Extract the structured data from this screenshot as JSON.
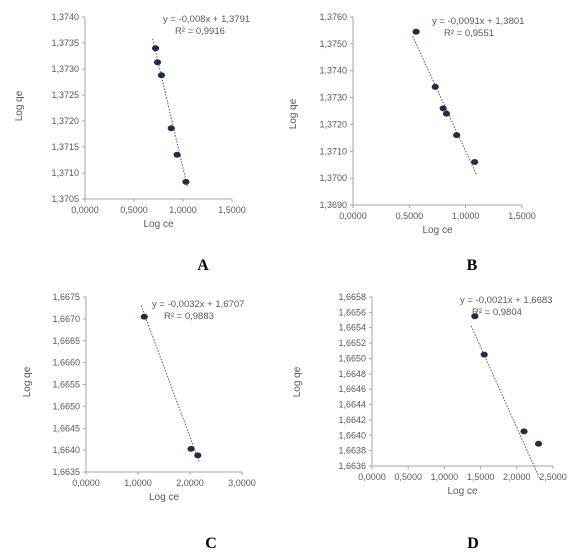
{
  "colors": {
    "axis": "#a6a6a6",
    "point": "#1f2d4d",
    "trend": "#595959",
    "text": "#595959"
  },
  "chart_data": [
    {
      "type": "scatter",
      "panel": "A",
      "xlabel": "Log ce",
      "ylabel": "Log qe",
      "xlim": [
        0,
        1.5
      ],
      "ylim": [
        1.3705,
        1.374
      ],
      "xticks": [
        "0,0000",
        "0,5000",
        "1,0000",
        "1,5000"
      ],
      "yticks": [
        "1,3705",
        "1,3710",
        "1,3715",
        "1,3720",
        "1,3725",
        "1,3730",
        "1,3735",
        "1,3740"
      ],
      "points": [
        {
          "x": 0.72,
          "y": 1.3734
        },
        {
          "x": 0.74,
          "y": 1.37313
        },
        {
          "x": 0.78,
          "y": 1.37288
        },
        {
          "x": 0.88,
          "y": 1.37186
        },
        {
          "x": 0.94,
          "y": 1.37135
        },
        {
          "x": 1.03,
          "y": 1.37083
        }
      ],
      "trendline": {
        "slope": -0.008,
        "intercept": 1.3791
      },
      "equation": "y = -0,008x + 1,3791",
      "r2": "R² = 0,9916"
    },
    {
      "type": "scatter",
      "panel": "B",
      "xlabel": "Log ce",
      "ylabel": "Log qe",
      "xlim": [
        0,
        1.5
      ],
      "ylim": [
        1.369,
        1.376
      ],
      "xticks": [
        "0,0000",
        "0,5000",
        "1,0000",
        "1,5000"
      ],
      "yticks": [
        "1,3690",
        "1,3700",
        "1,3710",
        "1,3720",
        "1,3730",
        "1,3740",
        "1,3750",
        "1,3760"
      ],
      "points": [
        {
          "x": 0.56,
          "y": 1.37545
        },
        {
          "x": 0.73,
          "y": 1.3734
        },
        {
          "x": 0.8,
          "y": 1.3726
        },
        {
          "x": 0.83,
          "y": 1.3724
        },
        {
          "x": 0.92,
          "y": 1.3716
        },
        {
          "x": 1.08,
          "y": 1.3706
        }
      ],
      "trendline": {
        "slope": -0.0091,
        "intercept": 1.3801
      },
      "equation": "y = -0,0091x + 1,3801",
      "r2": "R² = 0,9551"
    },
    {
      "type": "scatter",
      "panel": "C",
      "xlabel": "Log ce",
      "ylabel": "Log qe",
      "xlim": [
        0,
        3
      ],
      "ylim": [
        1.6635,
        1.6675
      ],
      "xticks": [
        "0,0000",
        "1,0000",
        "2,0000",
        "3,0000"
      ],
      "yticks": [
        "1,6635",
        "1,6640",
        "1,6645",
        "1,6650",
        "1,6655",
        "1,6660",
        "1,6665",
        "1,6670",
        "1,6675"
      ],
      "points": [
        {
          "x": 1.12,
          "y": 1.66705
        },
        {
          "x": 2.02,
          "y": 1.66403
        },
        {
          "x": 2.15,
          "y": 1.66388
        }
      ],
      "trendline": {
        "slope": -0.0032,
        "intercept": 1.6707
      },
      "equation": "y = -0,0032x + 1,6707",
      "r2": "R² = 0,9883"
    },
    {
      "type": "scatter",
      "panel": "D",
      "xlabel": "Log ce",
      "ylabel": "Log qe",
      "xlim": [
        0,
        2.5
      ],
      "ylim": [
        1.6636,
        1.6658
      ],
      "xticks": [
        "0,0000",
        "0,5000",
        "1,0000",
        "1,5000",
        "2,0000",
        "2,5000"
      ],
      "yticks": [
        "1,6636",
        "1,6638",
        "1,6640",
        "1,6642",
        "1,6644",
        "1,6646",
        "1,6648",
        "1,6650",
        "1,6652",
        "1,6654",
        "1,6656",
        "1,6658"
      ],
      "points": [
        {
          "x": 1.42,
          "y": 1.66555
        },
        {
          "x": 1.55,
          "y": 1.66505
        },
        {
          "x": 2.1,
          "y": 1.66405
        },
        {
          "x": 2.3,
          "y": 1.66389
        }
      ],
      "trendline": {
        "slope": -0.0021,
        "intercept": 1.6683
      },
      "equation": "y = -0,0021x + 1,6683",
      "r2": "R² = 0,9804"
    }
  ]
}
